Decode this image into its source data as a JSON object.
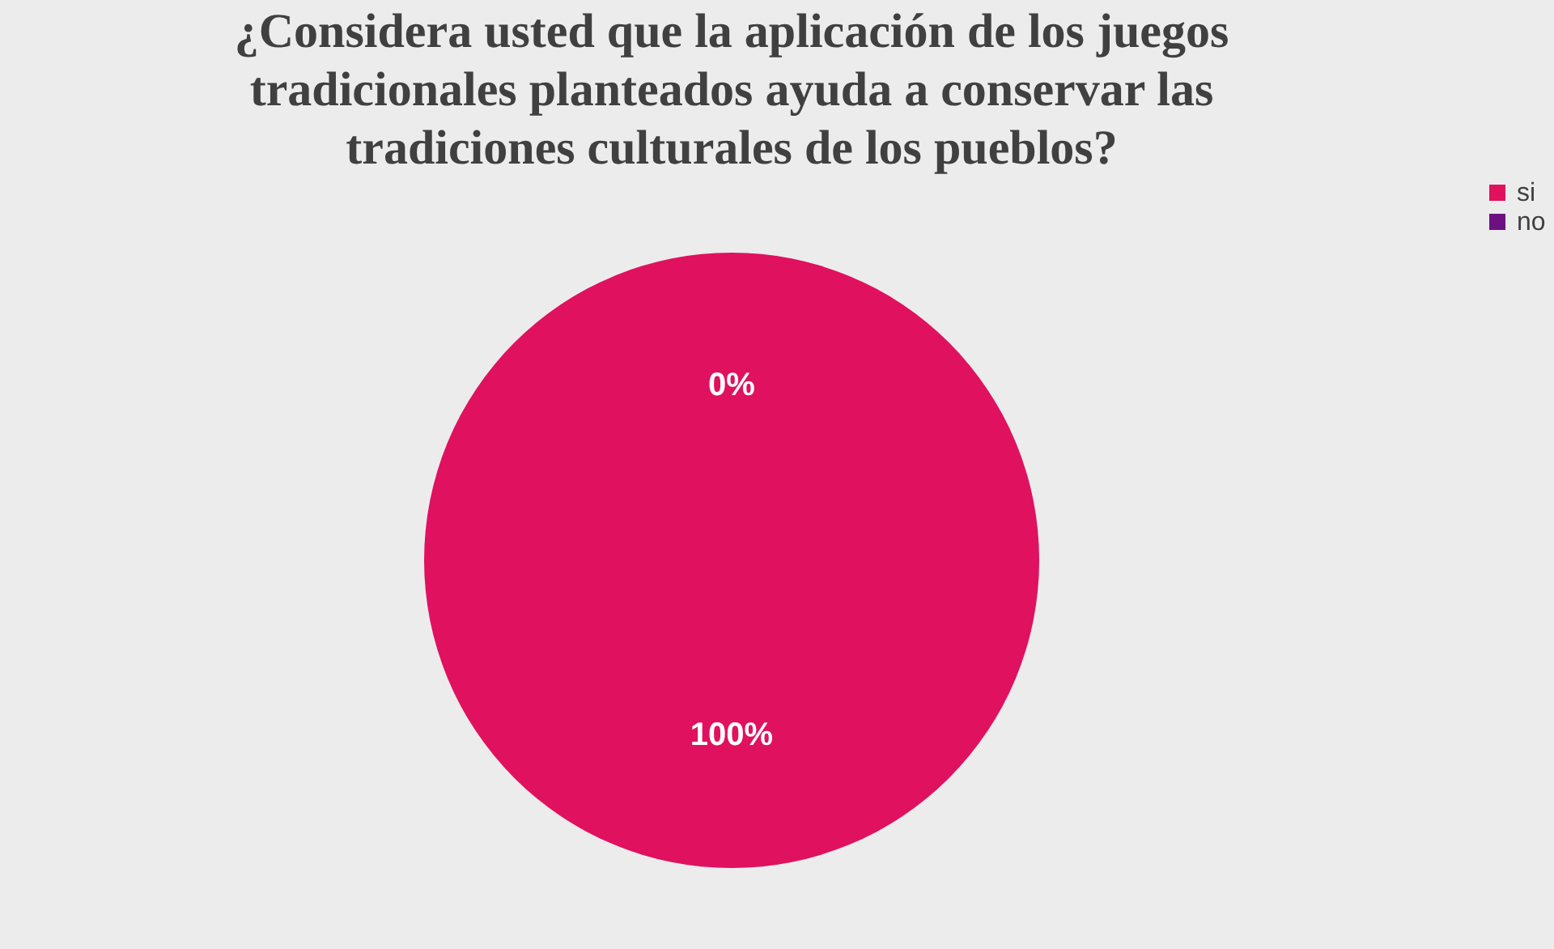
{
  "chart_data": {
    "type": "pie",
    "title": "¿Considera usted que la aplicación de los juegos tradicionales planteados ayuda a conservar las tradiciones culturales de los pueblos?",
    "categories": [
      "si",
      "no"
    ],
    "values": [
      100,
      0
    ],
    "colors": [
      "#e0115f",
      "#6b1180"
    ],
    "value_labels": [
      "100%",
      "0%"
    ],
    "legend": "right"
  }
}
